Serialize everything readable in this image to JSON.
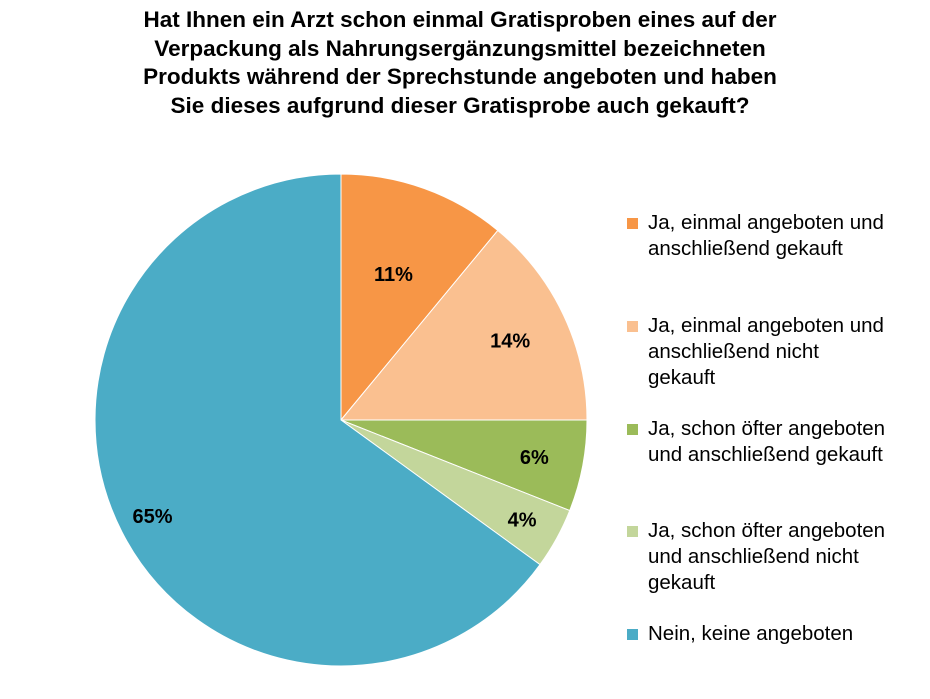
{
  "title_lines": [
    "Hat Ihnen ein Arzt schon einmal Gratisproben eines auf der",
    "Verpackung als Nahrungsergänzungsmittel bezeichneten",
    "Produkts während der Sprechstunde angeboten und haben",
    "Sie dieses aufgrund dieser Gratisprobe auch gekauft?"
  ],
  "chart_data": {
    "type": "pie",
    "title": "Hat Ihnen ein Arzt schon einmal Gratisproben eines auf der Verpackung als Nahrungsergänzungsmittel bezeichneten Produkts während der Sprechstunde angeboten und haben Sie dieses aufgrund dieser Gratisprobe auch gekauft?",
    "legend_position": "right",
    "slices": [
      {
        "label": "Ja, einmal angeboten und anschließend gekauft",
        "value": 11,
        "display": "11%",
        "color": "#F79646"
      },
      {
        "label": "Ja, einmal angeboten und anschließend nicht gekauft",
        "value": 14,
        "display": "14%",
        "color": "#FAC090"
      },
      {
        "label": "Ja, schon öfter angeboten und anschließend gekauft",
        "value": 6,
        "display": "6%",
        "color": "#9BBB59"
      },
      {
        "label": "Ja, schon öfter angeboten und anschließend nicht gekauft",
        "value": 4,
        "display": "4%",
        "color": "#C3D69B"
      },
      {
        "label": "Nein, keine angeboten",
        "value": 65,
        "display": "65%",
        "color": "#4BACC6"
      }
    ]
  },
  "legend": [
    {
      "lines": [
        "Ja, einmal angeboten und",
        "anschließend gekauft"
      ],
      "color": "#F79646"
    },
    {
      "lines": [
        "Ja, einmal angeboten und",
        "anschließend nicht",
        "gekauft"
      ],
      "color": "#FAC090"
    },
    {
      "lines": [
        "Ja, schon öfter angeboten",
        "und anschließend gekauft"
      ],
      "color": "#9BBB59"
    },
    {
      "lines": [
        "Ja, schon öfter angeboten",
        "und anschließend nicht",
        "gekauft"
      ],
      "color": "#C3D69B"
    },
    {
      "lines": [
        "Nein, keine angeboten"
      ],
      "color": "#4BACC6"
    }
  ]
}
